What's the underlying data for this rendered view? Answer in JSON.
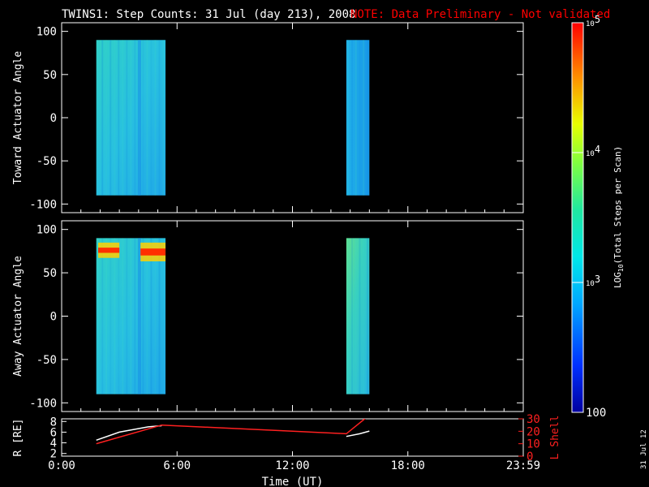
{
  "title": "TWINS1: Step Counts: 31 Jul (day 213), 2008",
  "note": "NOTE: Data Preliminary - Not validated",
  "colors": {
    "background": "#000000",
    "axes": "#ffffff",
    "note": "#ff0000",
    "r_line": "#ffffff",
    "lshell_line": "#ff2020"
  },
  "chart_data": [
    {
      "type": "heatmap",
      "ylabel": "Toward Actuator Angle",
      "ylim": [
        -110,
        110
      ],
      "yticks": [
        -100,
        -50,
        0,
        50,
        100
      ],
      "blocks": [
        {
          "t_start": 1.8,
          "t_end": 5.4,
          "a_min": -90,
          "a_max": 90
        },
        {
          "t_start": 14.8,
          "t_end": 16.0,
          "a_min": -90,
          "a_max": 90
        }
      ]
    },
    {
      "type": "heatmap",
      "ylabel": "Away Actuator Angle",
      "ylim": [
        -110,
        110
      ],
      "yticks": [
        -100,
        -50,
        0,
        50,
        100
      ],
      "blocks": [
        {
          "t_start": 1.8,
          "t_end": 5.4,
          "a_min": -90,
          "a_max": 90
        },
        {
          "t_start": 14.8,
          "t_end": 16.0,
          "a_min": -90,
          "a_max": 90
        }
      ],
      "hotspots": [
        {
          "t_start": 1.9,
          "t_end": 3.0,
          "a_min": 70,
          "a_max": 82
        },
        {
          "t_start": 4.1,
          "t_end": 5.4,
          "a_min": 66,
          "a_max": 82
        }
      ]
    },
    {
      "type": "line",
      "ylabel_left": "R [RE]",
      "ylabel_right": "L Shell",
      "left_ylim": [
        1.5,
        8.5
      ],
      "left_yticks": [
        2,
        4,
        6,
        8
      ],
      "right_ylim": [
        0,
        30
      ],
      "right_yticks": [
        0,
        10,
        20,
        30
      ],
      "series": [
        {
          "name": "R",
          "x": [
            1.8,
            3.0,
            4.5,
            5.2,
            14.8,
            15.5,
            16.0
          ],
          "y": [
            4.5,
            6.0,
            7.0,
            7.2,
            5.2,
            5.7,
            6.2
          ]
        },
        {
          "name": "L Shell",
          "x": [
            1.8,
            5.2,
            14.8,
            16.0
          ],
          "y": [
            10,
            25,
            18,
            33
          ]
        }
      ]
    }
  ],
  "colorbar": {
    "label": "LOG10(Total Steps per Scan)",
    "label_main": "LOG",
    "label_sub": "10",
    "label_rest": "(Total Steps per Scan)",
    "scale": "log",
    "range": [
      100,
      100000
    ],
    "ticks": [
      {
        "value": 100000,
        "base": "10",
        "exp": "5"
      },
      {
        "value": 10000,
        "base": "10",
        "exp": "4"
      },
      {
        "value": 1000,
        "base": "10",
        "exp": "3"
      },
      {
        "value": 100,
        "base": "100",
        "exp": ""
      }
    ]
  },
  "xaxis": {
    "label": "Time (UT)",
    "xlim": [
      0,
      24
    ],
    "ticks": [
      {
        "value": 0,
        "label": "0:00"
      },
      {
        "value": 6,
        "label": "6:00"
      },
      {
        "value": 12,
        "label": "12:00"
      },
      {
        "value": 18,
        "label": "18:00"
      },
      {
        "value": 24,
        "label": "23:59"
      }
    ]
  },
  "date_stamp": "31 Jul 12"
}
